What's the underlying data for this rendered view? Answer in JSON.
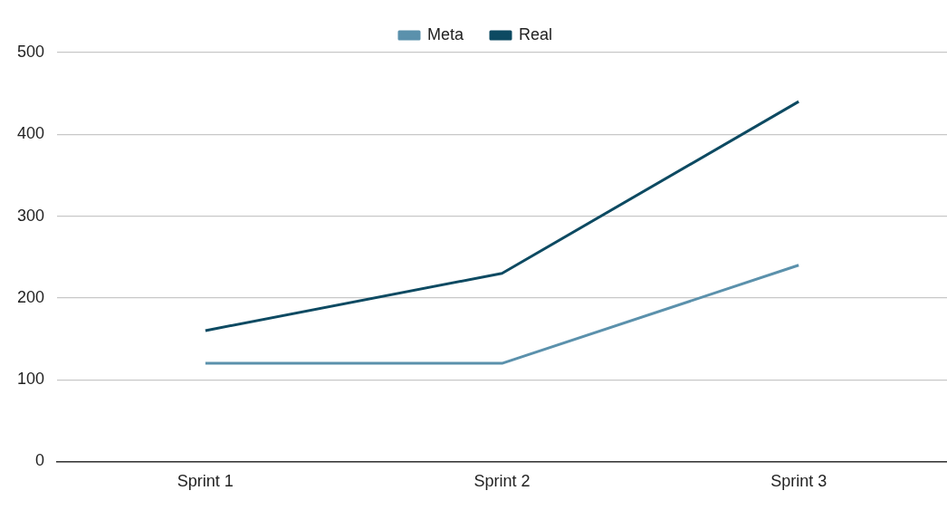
{
  "chart_data": {
    "type": "line",
    "categories": [
      "Sprint 1",
      "Sprint 2",
      "Sprint 3"
    ],
    "series": [
      {
        "name": "Meta",
        "color": "#5b91ac",
        "values": [
          120,
          120,
          240
        ]
      },
      {
        "name": "Real",
        "color": "#0d4a62",
        "values": [
          160,
          230,
          440
        ]
      }
    ],
    "ylim": [
      0,
      500
    ],
    "yticks": [
      0,
      100,
      200,
      300,
      400,
      500
    ],
    "grid": "y",
    "legend": "top",
    "marker": "none",
    "line_style": "solid"
  }
}
